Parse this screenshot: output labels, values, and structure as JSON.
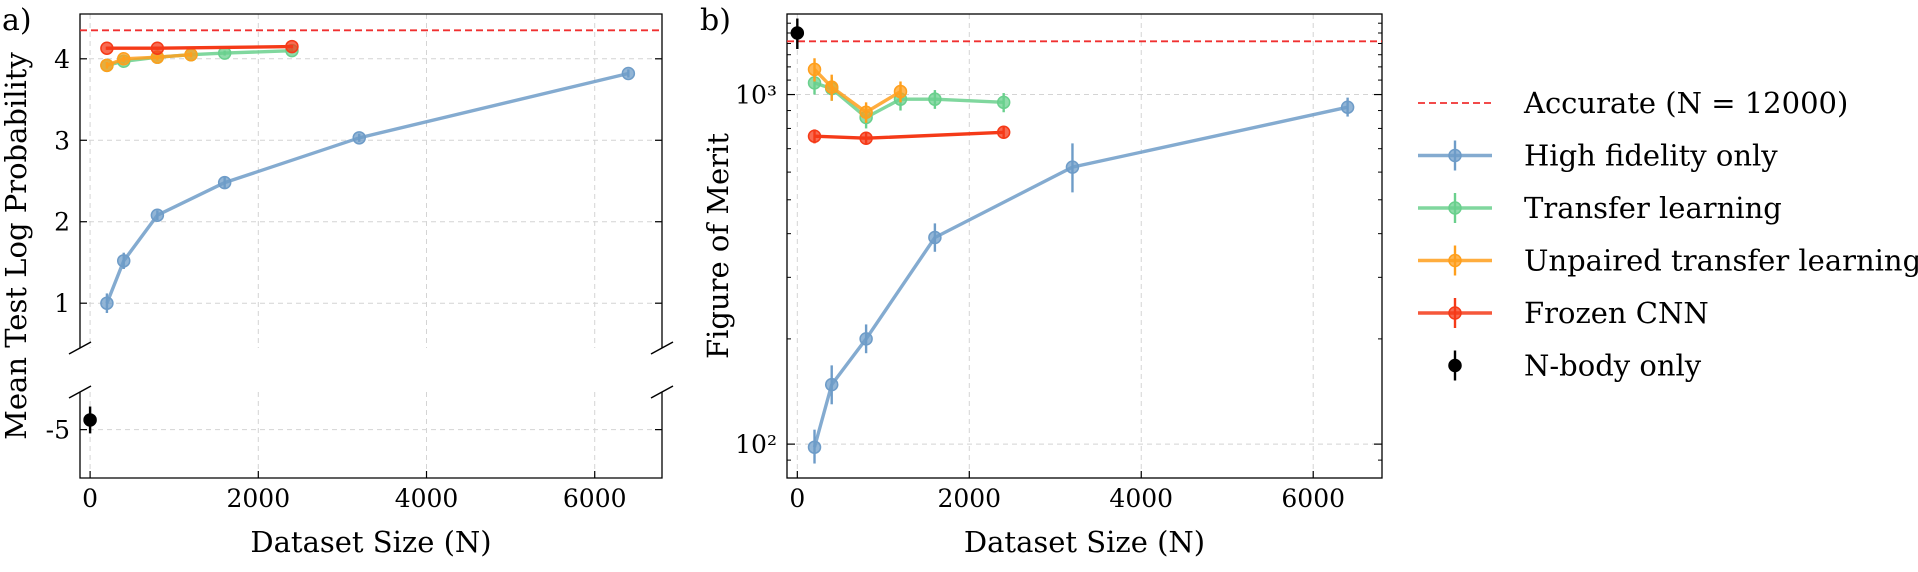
{
  "chart_data": [
    {
      "type": "line",
      "panel_label": "a)",
      "xlabel": "Dataset Size (N)",
      "ylabel": "Mean Test Log Probability",
      "xlim": [
        -120,
        6800
      ],
      "xticks": [
        0,
        2000,
        4000,
        6000
      ],
      "ylim_upper": [
        0.45,
        4.55
      ],
      "yticks_upper": [
        1,
        2,
        3,
        4
      ],
      "ylim_lower": [
        -5.9,
        -4.3
      ],
      "yticks_lower": [
        {
          "value": -5,
          "label": "-5"
        }
      ],
      "broken_axis": true,
      "grid": true,
      "reference_line": {
        "name": "Accurate (N = 12000)",
        "y": 4.35
      },
      "series": [
        {
          "name": "High fidelity only",
          "color": "#6e9cc8",
          "x": [
            200,
            400,
            800,
            1600,
            3200,
            6400
          ],
          "y": [
            1.0,
            1.52,
            2.08,
            2.48,
            3.03,
            3.82
          ],
          "err": [
            0.12,
            0.1,
            0.06,
            0.07,
            0.05,
            0.05
          ]
        },
        {
          "name": "Transfer learning",
          "color": "#6ad08d",
          "x": [
            200,
            400,
            800,
            1200,
            1600,
            2400
          ],
          "y": [
            3.92,
            3.97,
            4.02,
            4.05,
            4.07,
            4.1
          ],
          "err": [
            0.04,
            0.04,
            0.03,
            0.03,
            0.03,
            0.03
          ]
        },
        {
          "name": "Unpaired transfer learning",
          "color": "#ff9f1c",
          "x": [
            200,
            400,
            800,
            1200
          ],
          "y": [
            3.92,
            4.0,
            4.02,
            4.05
          ],
          "err": [
            0.04,
            0.04,
            0.04,
            0.03
          ]
        },
        {
          "name": "Frozen CNN",
          "color": "#f53a18",
          "x": [
            200,
            800,
            2400
          ],
          "y": [
            4.13,
            4.13,
            4.15
          ],
          "err": [
            0.02,
            0.02,
            0.02
          ]
        },
        {
          "name": "N-body only",
          "color": "#000000",
          "x": [
            0
          ],
          "y": [
            -4.82
          ],
          "err": [
            0.25
          ]
        }
      ]
    },
    {
      "type": "line",
      "panel_label": "b)",
      "xlabel": "Dataset Size (N)",
      "ylabel": "Figure of Merit",
      "yscale": "log",
      "xlim": [
        -120,
        6800
      ],
      "xticks": [
        0,
        2000,
        4000,
        6000
      ],
      "ylim": [
        80,
        1700
      ],
      "yticks": [
        {
          "value": 100,
          "label": "10²"
        },
        {
          "value": 1000,
          "label": "10³"
        }
      ],
      "grid": true,
      "reference_line": {
        "name": "Accurate (N = 12000)",
        "y": 1420
      },
      "series": [
        {
          "name": "High fidelity only",
          "color": "#6e9cc8",
          "x": [
            200,
            400,
            800,
            1600,
            3200,
            6400
          ],
          "y": [
            98,
            148,
            200,
            390,
            620,
            920
          ],
          "err_lo": [
            88,
            130,
            182,
            355,
            525,
            865
          ],
          "err_hi": [
            110,
            168,
            220,
            428,
            725,
            980
          ]
        },
        {
          "name": "Transfer learning",
          "color": "#6ad08d",
          "x": [
            200,
            400,
            800,
            1200,
            1600,
            2400
          ],
          "y": [
            1080,
            1040,
            860,
            970,
            970,
            950
          ],
          "err_lo": [
            1000,
            960,
            800,
            900,
            910,
            890
          ],
          "err_hi": [
            1160,
            1120,
            920,
            1040,
            1030,
            1010
          ]
        },
        {
          "name": "Unpaired transfer learning",
          "color": "#ff9f1c",
          "x": [
            200,
            400,
            800,
            1200
          ],
          "y": [
            1180,
            1050,
            890,
            1020
          ],
          "err_lo": [
            1090,
            960,
            830,
            950
          ],
          "err_hi": [
            1270,
            1140,
            950,
            1090
          ]
        },
        {
          "name": "Frozen CNN",
          "color": "#f53a18",
          "x": [
            200,
            800,
            2400
          ],
          "y": [
            760,
            750,
            780
          ],
          "err_lo": [
            725,
            720,
            750
          ],
          "err_hi": [
            795,
            780,
            810
          ]
        },
        {
          "name": "N-body only",
          "color": "#000000",
          "x": [
            0
          ],
          "y": [
            1500
          ],
          "err_lo": [
            1350
          ],
          "err_hi": [
            1650
          ]
        }
      ]
    }
  ],
  "legend": {
    "placement": "right",
    "entries": [
      {
        "name": "Accurate (N = 12000)",
        "color": "#f03030",
        "style": "dashed"
      },
      {
        "name": "High fidelity only",
        "color": "#6e9cc8",
        "style": "line-marker"
      },
      {
        "name": "Transfer learning",
        "color": "#6ad08d",
        "style": "line-marker"
      },
      {
        "name": "Unpaired transfer learning",
        "color": "#ff9f1c",
        "style": "line-marker"
      },
      {
        "name": "Frozen CNN",
        "color": "#f53a18",
        "style": "line-marker"
      },
      {
        "name": "N-body only",
        "color": "#000000",
        "style": "marker"
      }
    ]
  }
}
